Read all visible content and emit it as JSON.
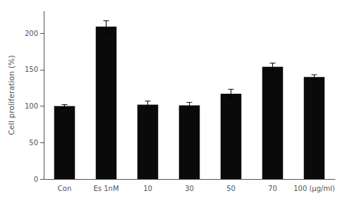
{
  "chart_data": {
    "type": "bar",
    "categories": [
      "Con",
      "Es 1nM",
      "10",
      "30",
      "50",
      "70",
      "100 (μg/ml)"
    ],
    "values": [
      100,
      209,
      102,
      101,
      117,
      154,
      140
    ],
    "errors": [
      2.0,
      8.0,
      5.0,
      4.0,
      6.0,
      5.0,
      3.0
    ],
    "color": "#0a0a0a",
    "ylabel": "Cell proliferation (%)",
    "ylim": [
      0,
      230
    ],
    "yticks": [
      0,
      50,
      100,
      150,
      200
    ],
    "grid": false
  }
}
